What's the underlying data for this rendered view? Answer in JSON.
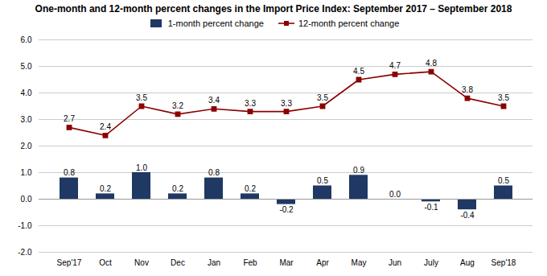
{
  "chart_data": {
    "type": "bar",
    "title": "One-month and 12-month percent changes in the Import Price Index: September 2017 – September 2018",
    "categories": [
      "Sep'17",
      "Oct",
      "Nov",
      "Dec",
      "Jan",
      "Feb",
      "Mar",
      "Apr",
      "May",
      "Jun",
      "July",
      "Aug",
      "Sep'18"
    ],
    "series": [
      {
        "name": "1-month percent change",
        "type": "bar",
        "color": "#1F3864",
        "values": [
          0.8,
          0.2,
          1.0,
          0.2,
          0.8,
          0.2,
          -0.2,
          0.5,
          0.9,
          0.0,
          -0.1,
          -0.4,
          0.5
        ],
        "value_labels": [
          "0.8",
          "0.2",
          "1.0",
          "0.2",
          "0.8",
          "0.2",
          "-0.2",
          "0.5",
          "0.9",
          "0.0",
          "-0.1",
          "-0.4",
          "0.5"
        ]
      },
      {
        "name": "12-month percent change",
        "type": "line",
        "color": "#8B0000",
        "marker": "square",
        "values": [
          2.7,
          2.4,
          3.5,
          3.2,
          3.4,
          3.3,
          3.3,
          3.5,
          4.5,
          4.7,
          4.8,
          3.8,
          3.5
        ]
      }
    ],
    "ylim": [
      -2.0,
      6.0
    ],
    "yticks": [
      {
        "value": -2.0,
        "label": "-2.0"
      },
      {
        "value": -1.0,
        "label": "-1.0"
      },
      {
        "value": 0.0,
        "label": "0.0"
      },
      {
        "value": 1.0,
        "label": "1.0"
      },
      {
        "value": 2.0,
        "label": "2.0"
      },
      {
        "value": 3.0,
        "label": "3.0"
      },
      {
        "value": 4.0,
        "label": "4.0"
      },
      {
        "value": 5.0,
        "label": "5.0"
      },
      {
        "value": 6.0,
        "label": "6.0"
      }
    ],
    "grid": true,
    "legend": "top",
    "data_labels": true
  }
}
